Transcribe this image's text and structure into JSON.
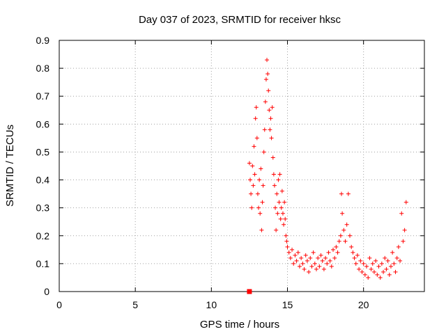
{
  "chart_data": {
    "type": "scatter",
    "title": "Day 037 of 2023, SRMTID for receiver hksc",
    "xlabel": "GPS time / hours",
    "ylabel": "SRMTID / TECUs",
    "xlim": [
      0,
      24
    ],
    "ylim": [
      0,
      0.9
    ],
    "xticks": [
      "0",
      "5",
      "10",
      "15",
      "20"
    ],
    "yticks": [
      "0",
      "0.1",
      "0.2",
      "0.3",
      "0.4",
      "0.5",
      "0.6",
      "0.7",
      "0.8",
      "0.9"
    ],
    "grid": true,
    "marker": "plus",
    "color": "#ff0000",
    "baseline_marker": {
      "x": 12.5,
      "y": 0.0,
      "shape": "square"
    },
    "series": [
      {
        "name": "hksc",
        "points": [
          [
            12.5,
            0.46
          ],
          [
            12.55,
            0.4
          ],
          [
            12.6,
            0.35
          ],
          [
            12.65,
            0.3
          ],
          [
            12.7,
            0.45
          ],
          [
            12.75,
            0.38
          ],
          [
            12.8,
            0.52
          ],
          [
            12.85,
            0.42
          ],
          [
            12.9,
            0.62
          ],
          [
            12.95,
            0.66
          ],
          [
            13.0,
            0.55
          ],
          [
            13.05,
            0.35
          ],
          [
            13.1,
            0.3
          ],
          [
            13.15,
            0.4
          ],
          [
            13.2,
            0.28
          ],
          [
            13.25,
            0.44
          ],
          [
            13.3,
            0.22
          ],
          [
            13.35,
            0.32
          ],
          [
            13.4,
            0.38
          ],
          [
            13.45,
            0.5
          ],
          [
            13.5,
            0.58
          ],
          [
            13.55,
            0.68
          ],
          [
            13.6,
            0.76
          ],
          [
            13.65,
            0.83
          ],
          [
            13.7,
            0.78
          ],
          [
            13.75,
            0.72
          ],
          [
            13.8,
            0.65
          ],
          [
            13.85,
            0.58
          ],
          [
            13.9,
            0.62
          ],
          [
            13.95,
            0.55
          ],
          [
            14.0,
            0.66
          ],
          [
            14.05,
            0.48
          ],
          [
            14.1,
            0.42
          ],
          [
            14.15,
            0.38
          ],
          [
            14.2,
            0.3
          ],
          [
            14.25,
            0.22
          ],
          [
            14.3,
            0.35
          ],
          [
            14.35,
            0.28
          ],
          [
            14.4,
            0.4
          ],
          [
            14.45,
            0.32
          ],
          [
            14.5,
            0.42
          ],
          [
            14.55,
            0.26
          ],
          [
            14.6,
            0.3
          ],
          [
            14.65,
            0.36
          ],
          [
            14.7,
            0.28
          ],
          [
            14.75,
            0.24
          ],
          [
            14.8,
            0.32
          ],
          [
            14.85,
            0.26
          ],
          [
            14.9,
            0.2
          ],
          [
            14.95,
            0.18
          ],
          [
            15.0,
            0.16
          ],
          [
            15.1,
            0.14
          ],
          [
            15.2,
            0.12
          ],
          [
            15.3,
            0.15
          ],
          [
            15.4,
            0.1
          ],
          [
            15.5,
            0.13
          ],
          [
            15.6,
            0.11
          ],
          [
            15.7,
            0.14
          ],
          [
            15.8,
            0.09
          ],
          [
            15.9,
            0.12
          ],
          [
            16.0,
            0.1
          ],
          [
            16.1,
            0.08
          ],
          [
            16.2,
            0.13
          ],
          [
            16.3,
            0.11
          ],
          [
            16.4,
            0.07
          ],
          [
            16.5,
            0.12
          ],
          [
            16.6,
            0.09
          ],
          [
            16.7,
            0.14
          ],
          [
            16.8,
            0.1
          ],
          [
            16.9,
            0.08
          ],
          [
            17.0,
            0.12
          ],
          [
            17.1,
            0.09
          ],
          [
            17.2,
            0.13
          ],
          [
            17.3,
            0.11
          ],
          [
            17.4,
            0.08
          ],
          [
            17.5,
            0.12
          ],
          [
            17.6,
            0.1
          ],
          [
            17.7,
            0.14
          ],
          [
            17.8,
            0.11
          ],
          [
            17.9,
            0.09
          ],
          [
            18.0,
            0.15
          ],
          [
            18.1,
            0.12
          ],
          [
            18.2,
            0.16
          ],
          [
            18.3,
            0.14
          ],
          [
            18.4,
            0.18
          ],
          [
            18.5,
            0.2
          ],
          [
            18.55,
            0.35
          ],
          [
            18.6,
            0.28
          ],
          [
            18.7,
            0.22
          ],
          [
            18.8,
            0.18
          ],
          [
            18.9,
            0.24
          ],
          [
            19.0,
            0.35
          ],
          [
            19.1,
            0.2
          ],
          [
            19.2,
            0.16
          ],
          [
            19.3,
            0.14
          ],
          [
            19.4,
            0.12
          ],
          [
            19.5,
            0.1
          ],
          [
            19.6,
            0.13
          ],
          [
            19.7,
            0.08
          ],
          [
            19.8,
            0.11
          ],
          [
            19.9,
            0.07
          ],
          [
            20.0,
            0.1
          ],
          [
            20.1,
            0.06
          ],
          [
            20.2,
            0.09
          ],
          [
            20.3,
            0.05
          ],
          [
            20.4,
            0.12
          ],
          [
            20.5,
            0.08
          ],
          [
            20.6,
            0.1
          ],
          [
            20.7,
            0.07
          ],
          [
            20.8,
            0.11
          ],
          [
            20.9,
            0.06
          ],
          [
            21.0,
            0.09
          ],
          [
            21.1,
            0.05
          ],
          [
            21.2,
            0.1
          ],
          [
            21.3,
            0.07
          ],
          [
            21.4,
            0.12
          ],
          [
            21.5,
            0.08
          ],
          [
            21.6,
            0.11
          ],
          [
            21.7,
            0.06
          ],
          [
            21.8,
            0.09
          ],
          [
            21.9,
            0.14
          ],
          [
            22.0,
            0.1
          ],
          [
            22.1,
            0.07
          ],
          [
            22.2,
            0.12
          ],
          [
            22.3,
            0.16
          ],
          [
            22.4,
            0.11
          ],
          [
            22.5,
            0.28
          ],
          [
            22.6,
            0.18
          ],
          [
            22.7,
            0.22
          ],
          [
            22.8,
            0.32
          ]
        ]
      }
    ]
  }
}
